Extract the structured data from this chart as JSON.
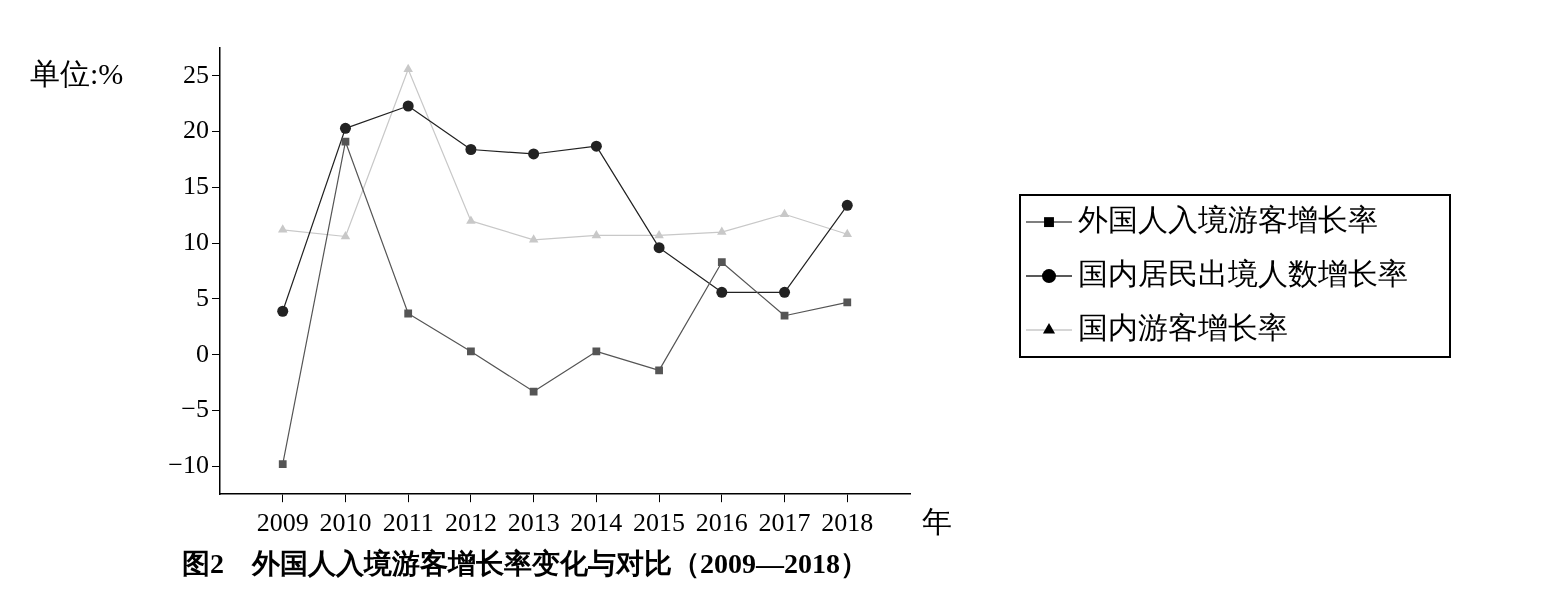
{
  "chart_data": {
    "type": "line",
    "title": "图2　外国人入境游客增长率变化与对比（2009—2018）",
    "xlabel": "年",
    "ylabel": "单位:%",
    "categories": [
      "2009",
      "2010",
      "2011",
      "2012",
      "2013",
      "2014",
      "2015",
      "2016",
      "2017",
      "2018"
    ],
    "series": [
      {
        "name": "外国人入境游客增长率",
        "color": "#555555",
        "marker": "square",
        "values": [
          -9.8,
          19.1,
          3.7,
          0.3,
          -3.3,
          0.3,
          -1.4,
          8.3,
          3.5,
          4.7
        ]
      },
      {
        "name": "国内居民出境人数增长率",
        "color": "#222222",
        "marker": "circle",
        "values": [
          3.9,
          20.3,
          22.3,
          18.4,
          18.0,
          18.7,
          9.6,
          5.6,
          5.6,
          13.4
        ]
      },
      {
        "name": "国内游客增长率",
        "color": "#c8c8c8",
        "marker": "triangle",
        "values": [
          11.2,
          10.6,
          25.6,
          12.0,
          10.3,
          10.7,
          10.7,
          11.0,
          12.6,
          10.8
        ]
      }
    ],
    "ylim": [
      -12.5,
      27.5
    ],
    "yticks": [
      -10,
      -5,
      0,
      5,
      10,
      15,
      20,
      25
    ],
    "grid": false,
    "legend": "right",
    "line_style": "solid"
  }
}
